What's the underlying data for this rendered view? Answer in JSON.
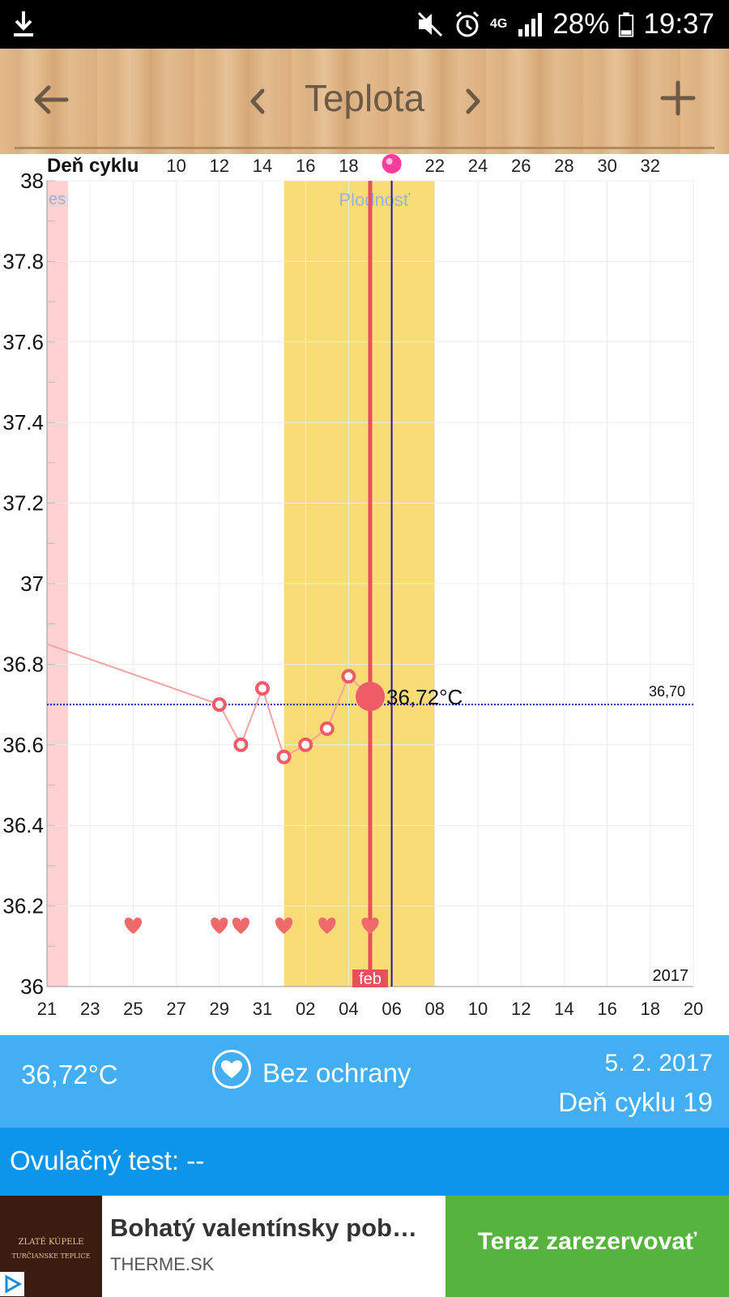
{
  "status_bar": {
    "battery": "28%",
    "time": "19:37",
    "network": "4G",
    "icons": [
      "download-icon",
      "mute-icon",
      "alarm-icon",
      "network-4g-icon",
      "signal-icon",
      "battery-icon"
    ]
  },
  "toolbar": {
    "title": "Teplota",
    "icons": [
      "back-arrow-icon",
      "chevron-left-icon",
      "chevron-right-icon",
      "plus-icon"
    ]
  },
  "chart_data": {
    "type": "line",
    "top_axis_label": "Deň cyklu",
    "top_ticks": [
      "10",
      "12",
      "14",
      "16",
      "18",
      "22",
      "24",
      "26",
      "28",
      "30",
      "32"
    ],
    "bottom_ticks": [
      "21",
      "23",
      "25",
      "27",
      "29",
      "31",
      "02",
      "04",
      "06",
      "08",
      "10",
      "12",
      "14",
      "16",
      "18",
      "20"
    ],
    "y_ticks": [
      "38",
      "37.8",
      "37.6",
      "37.4",
      "37.2",
      "37",
      "36.8",
      "36.6",
      "36.4",
      "36.2",
      "36"
    ],
    "ylim": [
      36,
      38
    ],
    "grid": true,
    "series": [
      {
        "x_day_index": [
          0,
          8,
          9,
          10,
          11,
          12,
          13,
          14,
          15
        ],
        "values": [
          36.85,
          36.7,
          36.6,
          36.74,
          36.57,
          36.6,
          36.64,
          36.77,
          36.72
        ]
      }
    ],
    "selected_value_label": "36,72°C",
    "coverline_label": "36,70",
    "coverline_value": 36.7,
    "fertile_label": "Plodnosť",
    "period_label_partial": "es",
    "month_label": "feb",
    "year_label": "2017",
    "intercourse_days": [
      4,
      8,
      9,
      11,
      13,
      15
    ],
    "colors": {
      "temp_line": "#f4a3a3",
      "temp_point": "#ef5b66",
      "fertile_band": "#f9dc76",
      "period_band": "#ffd1d1",
      "today_line": "#e8505b",
      "ovulation_line": "#1a1aa8",
      "coverline": "#1a1aa8",
      "heart": "#ef6b6b",
      "ovulation_dot": "#ff3d9a"
    }
  },
  "info": {
    "temperature": "36,72°C",
    "protection": "Bez ochrany",
    "date": "5. 2. 2017",
    "cycle_day": "Deň cyklu 19"
  },
  "ovulation_test": {
    "label": "Ovulačný test: --"
  },
  "ad": {
    "brand_line1": "ZLATÉ KÚPELE",
    "brand_line2": "TURČIANSKE TEPLICE",
    "title": "Bohatý valentínsky pob…",
    "domain": "THERME.SK",
    "cta": "Teraz zarezervovať"
  }
}
